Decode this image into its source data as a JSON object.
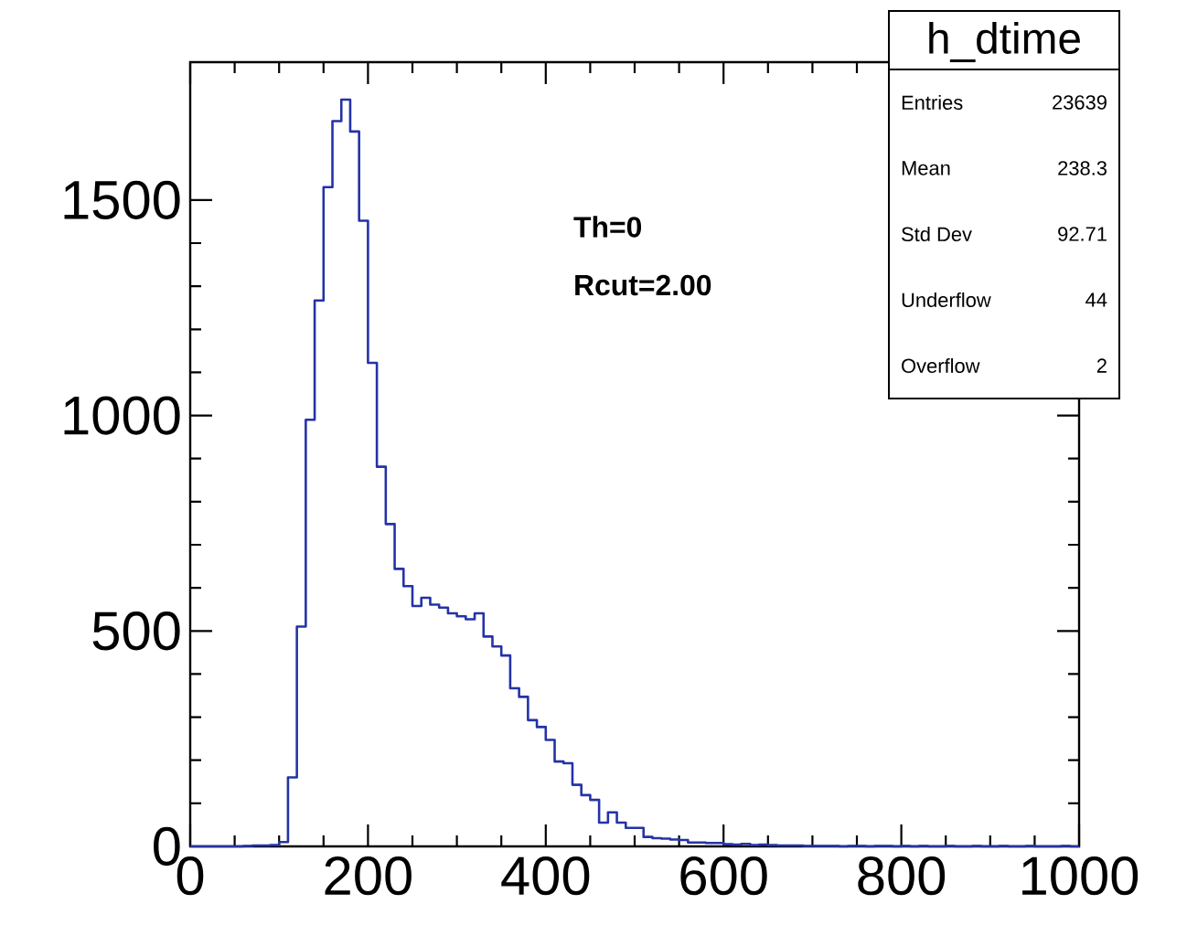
{
  "chart_data": {
    "type": "histogram",
    "title": "h_dtime",
    "annotations": [
      "Th=0",
      "Rcut=2.00",
      "Entries",
      "23639",
      "Mean",
      "238.3",
      "Std Dev",
      "92.71",
      "Underflow",
      "44",
      "Overflow",
      "2"
    ],
    "bins": [
      0,
      10,
      20,
      30,
      40,
      50,
      60,
      70,
      80,
      90,
      100,
      110,
      120,
      130,
      140,
      150,
      160,
      170,
      180,
      190,
      200,
      210,
      220,
      230,
      240,
      250,
      260,
      270,
      280,
      290,
      300,
      310,
      320,
      330,
      340,
      350,
      360,
      370,
      380,
      390,
      400,
      410,
      420,
      430,
      440,
      450,
      460,
      470,
      480,
      490,
      500,
      510,
      520,
      530,
      540,
      550,
      560,
      570,
      580,
      590,
      600,
      610,
      620,
      630,
      640,
      650,
      660,
      670,
      680,
      690,
      700,
      710,
      720,
      730,
      740,
      750,
      760,
      770,
      780,
      790,
      800,
      810,
      820,
      830,
      840,
      850,
      860,
      870,
      880,
      890,
      900,
      910,
      920,
      930,
      940,
      950,
      960,
      970,
      980,
      990,
      1000
    ],
    "values": [
      0,
      0,
      0,
      0,
      0,
      0,
      1,
      2,
      2,
      3,
      10,
      160,
      510,
      990,
      1267,
      1530,
      1683,
      1733,
      1659,
      1452,
      1122,
      881,
      748,
      644,
      604,
      558,
      577,
      561,
      554,
      541,
      534,
      527,
      541,
      487,
      464,
      443,
      367,
      347,
      293,
      277,
      247,
      197,
      193,
      143,
      119,
      108,
      55,
      79,
      55,
      43,
      43,
      22,
      19,
      18,
      16,
      15,
      9,
      9,
      8,
      8,
      5,
      4,
      6,
      3,
      4,
      3,
      2,
      2,
      2,
      1,
      1,
      1,
      1,
      0,
      1,
      1,
      0,
      1,
      1,
      0,
      1,
      0,
      1,
      0,
      0,
      1,
      0,
      0,
      1,
      0,
      0,
      1,
      0,
      0,
      1,
      0,
      0,
      0,
      1,
      0
    ],
    "color": "#2433a6",
    "xlim": [
      0,
      1000
    ],
    "xticks": [
      0,
      200,
      400,
      600,
      800,
      1000
    ],
    "ylim": [
      0,
      1820
    ],
    "yticks": [
      0,
      500,
      1000,
      1500
    ],
    "grid": false
  }
}
